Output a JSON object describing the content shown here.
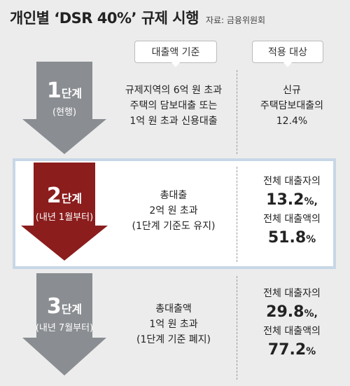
{
  "header": {
    "title": "개인별 ‘DSR 40%’ 규제 시행",
    "source": "자료: 금융위원회"
  },
  "columns": {
    "criteria_label": "대출액 기준",
    "target_label": "적용 대상"
  },
  "stages": [
    {
      "num": "1",
      "suffix": "단계",
      "period": "(현행)",
      "criteria": [
        "규제지역의 6억 원 초과",
        "주택의 담보대출 또는",
        "1억 원 초과 신용대출"
      ],
      "target_lines": [
        "신규",
        "주택담보대출의",
        "12.4%"
      ]
    },
    {
      "num": "2",
      "suffix": "단계",
      "period": "(내년 1월부터)",
      "criteria": [
        "총대출",
        "2억 원 초과",
        "(1단계 기준도 유지)"
      ],
      "target": {
        "line1": "전체 대출자의",
        "value1": "13.2",
        "unit1": "%,",
        "line2": "전체 대출액의",
        "value2": "51.8",
        "unit2": "%"
      }
    },
    {
      "num": "3",
      "suffix": "단계",
      "period": "(내년 7월부터)",
      "criteria": [
        "총대출액",
        "1억 원 초과",
        "(1단계 기준 폐지)"
      ],
      "target": {
        "line1": "전체 대출자의",
        "value1": "29.8",
        "unit1": "%,",
        "line2": "전체 대출액의",
        "value2": "77.2",
        "unit2": "%"
      }
    }
  ],
  "colors": {
    "arrow_gray": "#8a8d91",
    "arrow_red": "#8b1d1d",
    "highlight_border": "#c7d7e6",
    "background": "#ececec"
  }
}
